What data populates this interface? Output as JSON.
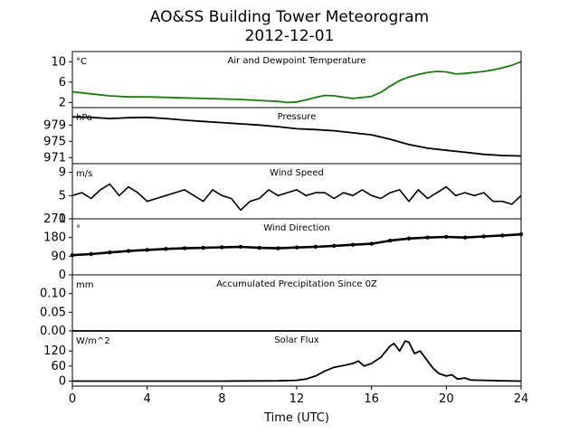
{
  "title": "AO&SS Building Tower Meteorogram",
  "subtitle": "2012-12-01",
  "xlabel": "Time (UTC)",
  "x_ticks": [
    0,
    4,
    8,
    12,
    16,
    20,
    24
  ],
  "x_range": [
    0,
    24
  ],
  "colors": {
    "axes": "#000000",
    "temperature": "#1a7a10",
    "dewpoint": "#2e8b22",
    "trace": "#000000"
  },
  "chart_data": [
    {
      "type": "line",
      "panel": "temperature",
      "title": "Air and Dewpoint Temperature",
      "ylabel": "°C",
      "ylim": [
        1,
        12
      ],
      "yticks": [
        2,
        6,
        10
      ],
      "series": [
        {
          "color": "#1a7a10",
          "x": [
            0,
            1,
            2,
            3,
            4,
            5,
            6,
            7,
            8,
            9,
            10,
            11,
            11.5,
            12,
            12.5,
            13,
            13.5,
            14,
            15,
            16,
            16.5,
            17,
            17.5,
            18,
            18.5,
            19,
            19.5,
            20,
            20.5,
            21,
            21.5,
            22,
            22.5,
            23,
            23.5,
            24
          ],
          "y": [
            4.1,
            3.7,
            3.3,
            3.1,
            3.1,
            3.0,
            2.9,
            2.8,
            2.7,
            2.6,
            2.4,
            2.2,
            2.0,
            2.1,
            2.5,
            3.0,
            3.4,
            3.3,
            2.8,
            3.2,
            4.0,
            5.2,
            6.3,
            7.0,
            7.5,
            7.9,
            8.1,
            8.0,
            7.6,
            7.7,
            7.9,
            8.1,
            8.4,
            8.8,
            9.3,
            10.0
          ]
        }
      ]
    },
    {
      "type": "line",
      "panel": "pressure",
      "title": "Pressure",
      "ylabel": "hPa",
      "ylim": [
        969.5,
        983.3
      ],
      "yticks": [
        971,
        975,
        979
      ],
      "series": [
        {
          "color": "#000000",
          "x": [
            0,
            1,
            2,
            3,
            4,
            5,
            6,
            7,
            8,
            9,
            10,
            11,
            12,
            13,
            14,
            15,
            16,
            17,
            18,
            19,
            20,
            21,
            22,
            23,
            24
          ],
          "y": [
            981.0,
            980.9,
            980.6,
            980.8,
            980.9,
            980.6,
            980.2,
            979.9,
            979.6,
            979.3,
            979.0,
            978.6,
            978.1,
            977.9,
            977.6,
            977.1,
            976.6,
            975.5,
            974.2,
            973.3,
            972.8,
            972.3,
            971.8,
            971.5,
            971.4
          ]
        }
      ]
    },
    {
      "type": "line",
      "panel": "wind_speed",
      "title": "Wind Speed",
      "ylabel": "m/s",
      "ylim": [
        1,
        10.5
      ],
      "yticks": [
        1,
        5,
        9
      ],
      "series": [
        {
          "color": "#000000",
          "x": [
            0,
            0.5,
            1,
            1.5,
            2,
            2.5,
            3,
            3.5,
            4,
            4.5,
            5,
            5.5,
            6,
            6.5,
            7,
            7.5,
            8,
            8.5,
            9,
            9.5,
            10,
            10.5,
            11,
            11.5,
            12,
            12.5,
            13,
            13.5,
            14,
            14.5,
            15,
            15.5,
            16,
            16.5,
            17,
            17.5,
            18,
            18.5,
            19,
            19.5,
            20,
            20.5,
            21,
            21.5,
            22,
            22.5,
            23,
            23.5,
            24
          ],
          "y": [
            5.0,
            5.5,
            4.5,
            6.0,
            7.0,
            5.0,
            6.5,
            5.5,
            4.0,
            4.5,
            5.0,
            5.5,
            6.0,
            5.0,
            4.0,
            6.0,
            5.0,
            4.5,
            2.5,
            4.0,
            4.5,
            6.0,
            5.0,
            5.5,
            6.0,
            5.0,
            5.5,
            5.5,
            4.5,
            5.5,
            5.0,
            6.0,
            5.0,
            4.5,
            5.5,
            6.0,
            4.0,
            6.0,
            4.5,
            5.5,
            6.5,
            5.0,
            5.5,
            5.0,
            5.5,
            4.0,
            4.0,
            3.5,
            5.0
          ]
        }
      ]
    },
    {
      "type": "scatter",
      "panel": "wind_direction",
      "title": "Wind Direction",
      "ylabel": "°",
      "ylim": [
        0,
        270
      ],
      "yticks": [
        0,
        90,
        180,
        270
      ],
      "series": [
        {
          "color": "#000000",
          "x": [
            0,
            1,
            2,
            3,
            4,
            5,
            6,
            7,
            8,
            9,
            10,
            11,
            12,
            13,
            14,
            15,
            16,
            17,
            18,
            19,
            20,
            21,
            22,
            23,
            24
          ],
          "y": [
            95,
            100,
            108,
            115,
            120,
            125,
            128,
            130,
            133,
            135,
            130,
            128,
            132,
            135,
            140,
            145,
            150,
            165,
            175,
            180,
            183,
            180,
            185,
            190,
            195
          ]
        }
      ]
    },
    {
      "type": "line",
      "panel": "precipitation",
      "title": "Accumulated Precipitation Since 0Z",
      "ylabel": "mm",
      "ylim": [
        0,
        0.15
      ],
      "yticks": [
        0.0,
        0.05,
        0.1
      ],
      "ytick_labels": [
        "0.00",
        "0.05",
        "0.10"
      ],
      "series": [
        {
          "color": "#000000",
          "x": [
            0,
            24
          ],
          "y": [
            0,
            0
          ]
        }
      ]
    },
    {
      "type": "line",
      "panel": "solar_flux",
      "title": "Solar Flux",
      "ylabel": "W/m^2",
      "ylim": [
        -20,
        200
      ],
      "yticks": [
        0,
        60,
        120
      ],
      "series": [
        {
          "color": "#000000",
          "x": [
            0,
            8,
            11,
            12,
            12.5,
            13,
            13.5,
            14,
            14.5,
            15,
            15.3,
            15.6,
            16,
            16.5,
            17,
            17.2,
            17.5,
            17.8,
            18,
            18.3,
            18.6,
            19,
            19.3,
            19.6,
            20,
            20.3,
            20.6,
            21,
            21.3,
            22,
            23,
            24
          ],
          "y": [
            0,
            0,
            1,
            3,
            8,
            20,
            40,
            55,
            62,
            70,
            80,
            60,
            70,
            95,
            140,
            150,
            120,
            160,
            155,
            110,
            120,
            80,
            50,
            30,
            20,
            25,
            8,
            12,
            4,
            3,
            1,
            0
          ]
        }
      ]
    }
  ]
}
